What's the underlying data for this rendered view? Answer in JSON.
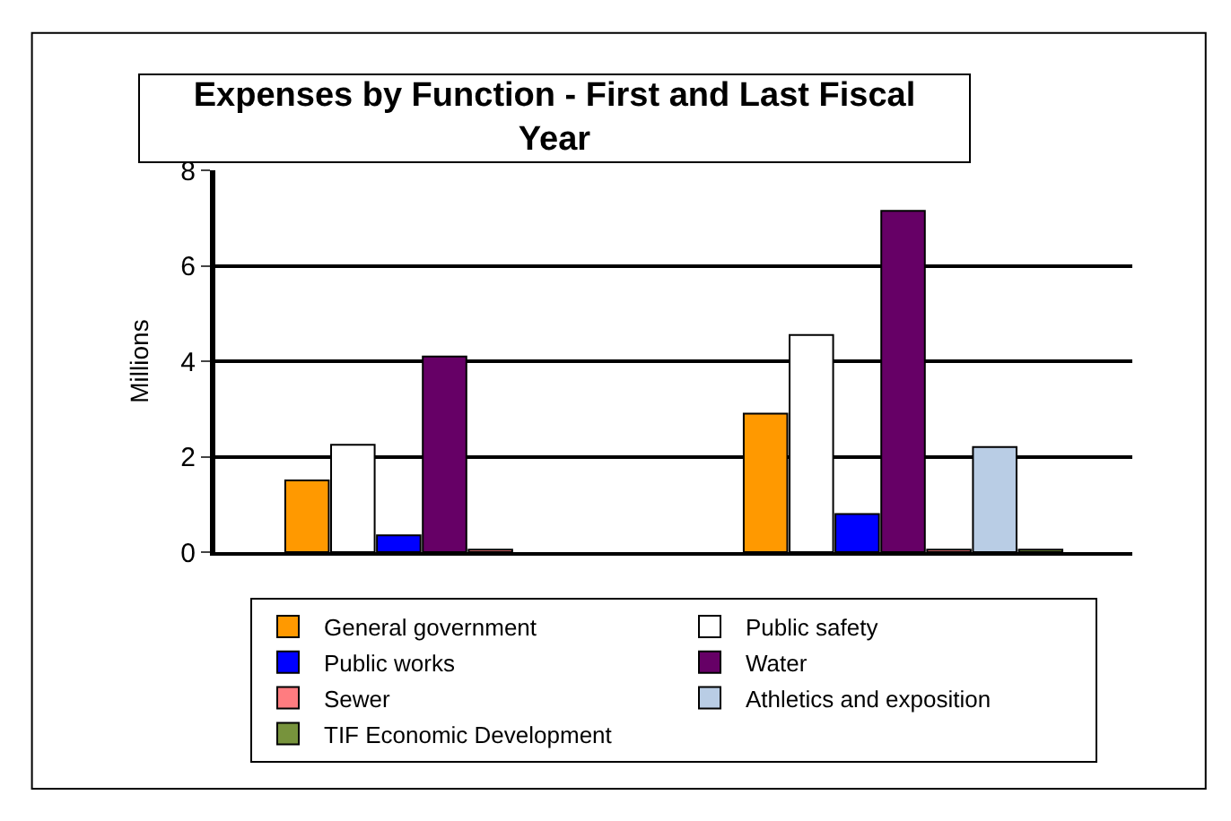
{
  "chart_data": {
    "type": "bar",
    "title": "Expenses by Function - First and Last Fiscal Year",
    "ylabel": "Millions",
    "categories": [
      null,
      null
    ],
    "series": [
      {
        "name": "General government",
        "color": "#ff9900",
        "values": [
          1.5,
          2.9
        ]
      },
      {
        "name": "Public safety",
        "color": "#ffffff",
        "values": [
          2.25,
          4.55
        ]
      },
      {
        "name": "Public works",
        "color": "#0000ff",
        "values": [
          0.35,
          0.8
        ]
      },
      {
        "name": "Water",
        "color": "#660066",
        "values": [
          4.1,
          7.15
        ]
      },
      {
        "name": "Sewer",
        "color": "#ff7c80",
        "values": [
          0.05,
          0.05
        ]
      },
      {
        "name": "Athletics and exposition",
        "color": "#b9cde5",
        "values": [
          null,
          2.2
        ]
      },
      {
        "name": "TIF Economic Development",
        "color": "#77933c",
        "values": [
          null,
          0.05
        ]
      }
    ],
    "ylim": [
      0,
      8
    ],
    "yticks": [
      0,
      2,
      4,
      6,
      8
    ],
    "grid": "y",
    "legend": "bottom"
  }
}
